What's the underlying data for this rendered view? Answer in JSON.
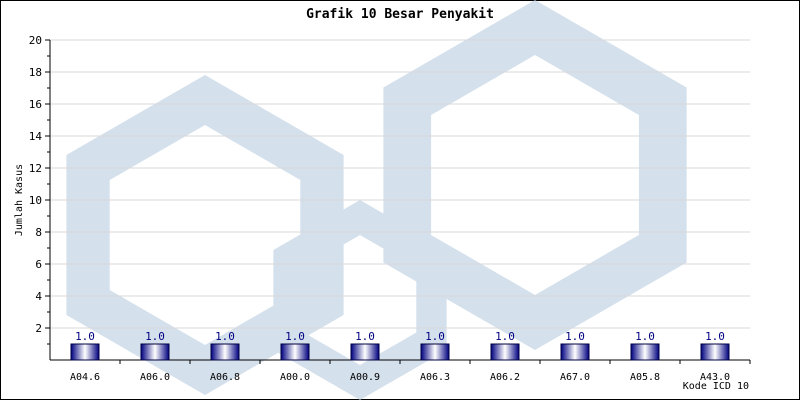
{
  "chart_data": {
    "type": "bar",
    "title": "Grafik 10 Besar Penyakit",
    "xlabel": "Kode ICD 10",
    "ylabel": "Jumlah Kasus",
    "categories": [
      "A04.6",
      "A06.0",
      "A06.8",
      "A00.0",
      "A00.9",
      "A06.3",
      "A06.2",
      "A67.0",
      "A05.8",
      "A43.0"
    ],
    "values": [
      1.0,
      1.0,
      1.0,
      1.0,
      1.0,
      1.0,
      1.0,
      1.0,
      1.0,
      1.0
    ],
    "value_labels": [
      "1.0",
      "1.0",
      "1.0",
      "1.0",
      "1.0",
      "1.0",
      "1.0",
      "1.0",
      "1.0",
      "1.0"
    ],
    "ylim": [
      0,
      20
    ],
    "yticks": [
      2,
      4,
      6,
      8,
      10,
      12,
      14,
      16,
      18,
      20
    ],
    "grid": true,
    "legend": "none",
    "colors": {
      "bar_dark": "#000080",
      "bar_light": "#ffffff",
      "value_label": "#000080",
      "grid": "#d8d8d8",
      "watermark": "#c6d6e6"
    }
  }
}
